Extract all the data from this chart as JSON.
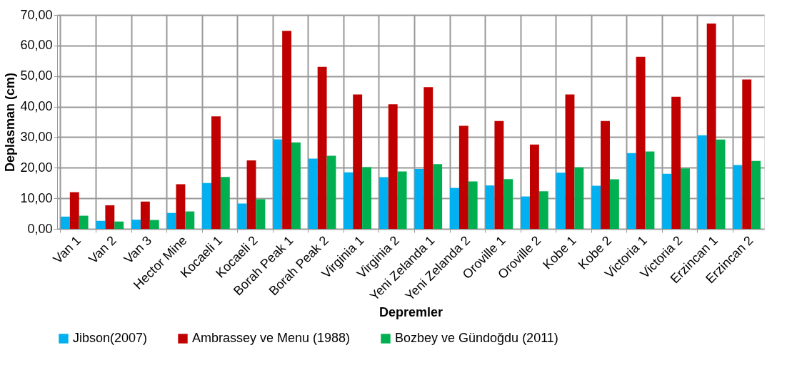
{
  "chart_data": {
    "type": "bar",
    "xlabel": "Depremler",
    "ylabel": "Deplasman (cm)",
    "categories": [
      "Van 1",
      "Van 2",
      "Van 3",
      "Hector Mine",
      "Kocaeli 1",
      "Kocaeli 2",
      "Borah Peak 1",
      "Borah Peak 2",
      "Virginia 1",
      "Virginia 2",
      "Yeni Zelanda 1",
      "Yeni Zelanda 2",
      "Oroville 1",
      "Oroville 2",
      "Kobe 1",
      "Kobe 2",
      "Victoria 1",
      "Victoria 2",
      "Erzincan 1",
      "Erzincan 2"
    ],
    "series": [
      {
        "name": "Jibson(2007)",
        "color": "#00b0f0",
        "values": [
          4.0,
          2.6,
          3.0,
          5.2,
          15.0,
          8.3,
          29.3,
          23.0,
          18.5,
          16.9,
          19.6,
          13.4,
          14.2,
          10.6,
          18.4,
          14.1,
          24.8,
          18.0,
          30.6,
          20.9
        ]
      },
      {
        "name": "Ambrassey ve Menu (1988)",
        "color": "#c00000",
        "values": [
          12.0,
          7.7,
          8.9,
          14.6,
          36.8,
          22.4,
          64.8,
          53.0,
          44.0,
          40.8,
          46.4,
          33.7,
          35.3,
          27.6,
          44.0,
          35.3,
          56.3,
          43.2,
          67.2,
          48.9
        ]
      },
      {
        "name": "Bozbey ve Gündoğdu (2011)",
        "color": "#00b050",
        "values": [
          4.3,
          2.4,
          2.9,
          5.7,
          17.0,
          9.7,
          28.3,
          23.9,
          20.2,
          18.8,
          21.2,
          15.5,
          16.3,
          12.3,
          20.1,
          16.2,
          25.3,
          19.8,
          29.2,
          22.2
        ]
      }
    ],
    "ylim": [
      0,
      70
    ],
    "yticks": [
      {
        "value": 0,
        "label": "0,00"
      },
      {
        "value": 10,
        "label": "10,00"
      },
      {
        "value": 20,
        "label": "20,00"
      },
      {
        "value": 30,
        "label": "30,00"
      },
      {
        "value": 40,
        "label": "40,00"
      },
      {
        "value": 50,
        "label": "50,00"
      },
      {
        "value": 60,
        "label": "60,00"
      },
      {
        "value": 70,
        "label": "70,00"
      }
    ],
    "grid": true,
    "legend": "bottom"
  }
}
